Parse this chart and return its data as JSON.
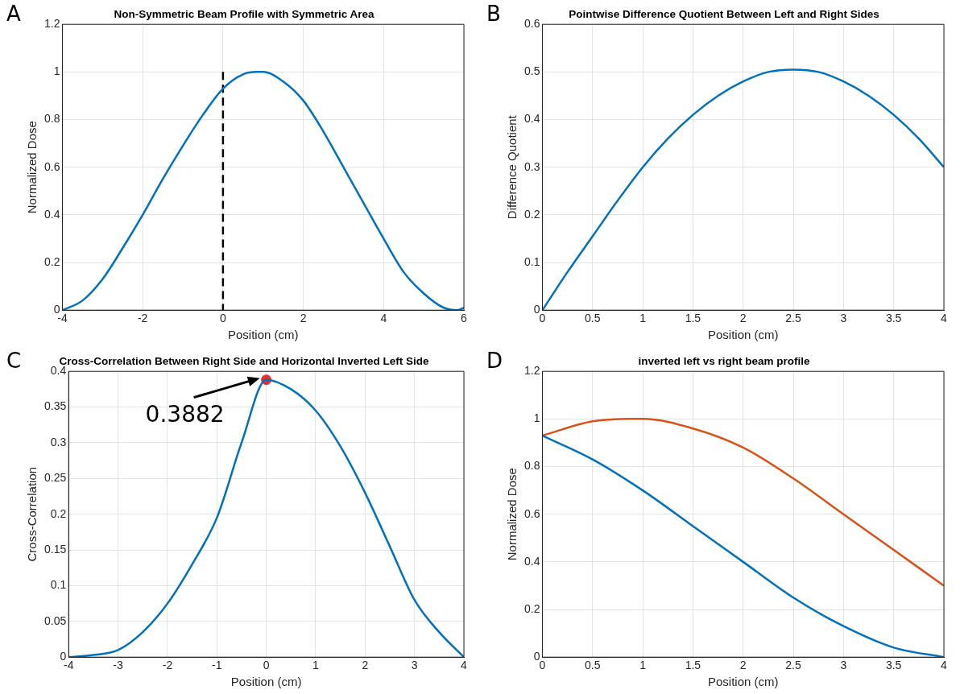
{
  "chart_data": [
    {
      "type": "line",
      "title": "Non-Symmetric Beam Profile with Symmetric Area",
      "xlabel": "Position (cm)",
      "ylabel": "Normalized Dose",
      "xlim": [
        -4,
        6
      ],
      "xticks": [
        -4,
        -2,
        0,
        2,
        4,
        6
      ],
      "ylim": [
        0,
        1.2
      ],
      "yticks": [
        0,
        0.2,
        0.4,
        0.6,
        0.8,
        1,
        1.2
      ],
      "grid": true,
      "legend": false,
      "annotations": [
        "A"
      ],
      "series": [
        {
          "color": "#0072bd",
          "x": [
            -4,
            -3.5,
            -3,
            -2.5,
            -2,
            -1.5,
            -1,
            -0.5,
            0,
            0.5,
            0.85,
            1,
            1.5,
            2,
            2.5,
            3,
            3.5,
            4,
            4.5,
            5,
            5.5,
            5.85,
            6
          ],
          "values": [
            0,
            0.04,
            0.13,
            0.26,
            0.4,
            0.55,
            0.69,
            0.82,
            0.93,
            0.99,
            1,
            1,
            0.96,
            0.88,
            0.75,
            0.6,
            0.45,
            0.3,
            0.16,
            0.07,
            0.01,
            0,
            0.01
          ]
        },
        {
          "color": "#000000",
          "line_style": "dashed",
          "x": [
            0,
            0
          ],
          "values": [
            1,
            0
          ]
        }
      ]
    },
    {
      "type": "line",
      "title": "Pointwise Difference Quotient Between Left and Right Sides",
      "xlabel": "Position (cm)",
      "ylabel": "Difference Quotient",
      "xlim": [
        0,
        4
      ],
      "xticks": [
        0,
        0.5,
        1,
        1.5,
        2,
        2.5,
        3,
        3.5,
        4
      ],
      "ylim": [
        0,
        0.6
      ],
      "yticks": [
        0,
        0.1,
        0.2,
        0.3,
        0.4,
        0.5,
        0.6
      ],
      "grid": true,
      "legend": false,
      "annotations": [
        "B"
      ],
      "series": [
        {
          "color": "#0072bd",
          "x": [
            0,
            0.25,
            0.5,
            0.75,
            1,
            1.25,
            1.5,
            1.75,
            2,
            2.25,
            2.5,
            2.75,
            3,
            3.25,
            3.5,
            3.75,
            4
          ],
          "values": [
            0,
            0.08,
            0.155,
            0.23,
            0.3,
            0.36,
            0.41,
            0.45,
            0.48,
            0.5,
            0.505,
            0.5,
            0.48,
            0.45,
            0.41,
            0.36,
            0.3
          ]
        }
      ]
    },
    {
      "type": "line",
      "title": "Cross-Correlation Between Right Side and Horizontal Inverted Left Side",
      "xlabel": "Position (cm)",
      "ylabel": "Cross-Correlation",
      "xlim": [
        -4,
        4
      ],
      "xticks": [
        -4,
        -3,
        -2,
        -1,
        0,
        1,
        2,
        3,
        4
      ],
      "ylim": [
        0,
        0.4
      ],
      "yticks": [
        0,
        0.05,
        0.1,
        0.15,
        0.2,
        0.25,
        0.3,
        0.35,
        0.4
      ],
      "grid": true,
      "legend": false,
      "annotations": [
        "C",
        {
          "text": "0.3882",
          "x": 0,
          "y": 0.3882
        }
      ],
      "series": [
        {
          "color": "#0072bd",
          "x": [
            -4,
            -3.5,
            -3,
            -2.5,
            -2,
            -1.5,
            -1,
            -0.5,
            0,
            0.5,
            1,
            1.5,
            2,
            2.5,
            3,
            3.5,
            4
          ],
          "values": [
            0,
            0.003,
            0.01,
            0.035,
            0.075,
            0.13,
            0.195,
            0.3,
            0.3882,
            0.375,
            0.345,
            0.295,
            0.23,
            0.155,
            0.08,
            0.035,
            0
          ]
        },
        {
          "type": "scatter",
          "color": "#e03030",
          "marker": "circle",
          "x": [
            0
          ],
          "values": [
            0.3882
          ]
        }
      ]
    },
    {
      "type": "line",
      "title": "inverted left vs right beam profile",
      "xlabel": "Position (cm)",
      "ylabel": "Normalized Dose",
      "xlim": [
        0,
        4
      ],
      "xticks": [
        0,
        0.5,
        1,
        1.5,
        2,
        2.5,
        3,
        3.5,
        4
      ],
      "ylim": [
        0,
        1.2
      ],
      "yticks": [
        0,
        0.2,
        0.4,
        0.6,
        0.8,
        1,
        1.2
      ],
      "grid": true,
      "legend": false,
      "annotations": [
        "D"
      ],
      "series": [
        {
          "color": "#0072bd",
          "x": [
            0,
            0.5,
            1,
            1.5,
            2,
            2.5,
            3,
            3.5,
            4
          ],
          "values": [
            0.93,
            0.83,
            0.7,
            0.55,
            0.4,
            0.25,
            0.13,
            0.04,
            0
          ]
        },
        {
          "color": "#d95319",
          "x": [
            0,
            0.5,
            0.85,
            1,
            1.5,
            2,
            2.5,
            3,
            3.5,
            4
          ],
          "values": [
            0.93,
            0.99,
            1,
            1,
            0.96,
            0.88,
            0.75,
            0.6,
            0.45,
            0.3
          ]
        }
      ]
    }
  ]
}
